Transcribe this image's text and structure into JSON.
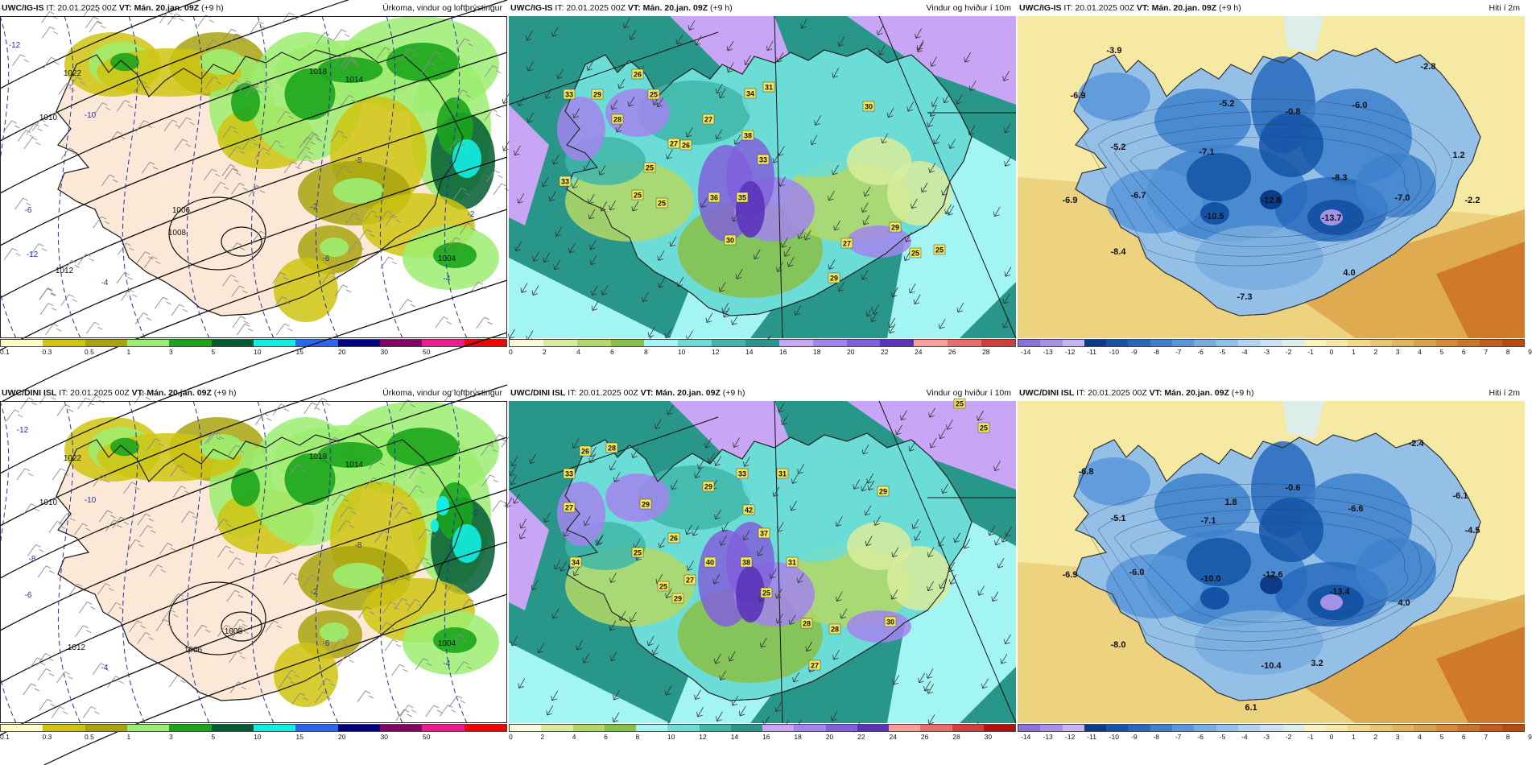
{
  "panels": [
    {
      "id": "p1",
      "model": "UWC/IG-IS",
      "it": "IT: 20.01.2025 00Z",
      "vt_label": "VT:",
      "vt": "Mán. 20.jan. 09Z",
      "lead": "(+9 h)",
      "title": "Úrkoma, vindur og loftþrýstingur",
      "type": "precip",
      "legend_ticks": [
        "0.1",
        "0.3",
        "0.5",
        "1",
        "3",
        "5",
        "10",
        "15",
        "20",
        "30",
        "50"
      ],
      "labels": [
        {
          "t": "1022"
        },
        {
          "t": "1018"
        },
        {
          "t": "1014"
        },
        {
          "t": "1010"
        },
        {
          "t": "1006"
        },
        {
          "t": "1012"
        },
        {
          "t": "1008"
        },
        {
          "t": "1004"
        },
        {
          "t": "-12"
        },
        {
          "t": "-10"
        },
        {
          "t": "-8"
        },
        {
          "t": "-6"
        },
        {
          "t": "-4"
        },
        {
          "t": "-2"
        },
        {
          "t": "-12"
        },
        {
          "t": "-6"
        },
        {
          "t": "-4"
        },
        {
          "t": "-2"
        }
      ]
    },
    {
      "id": "p2",
      "model": "UWC/IG-IS",
      "it": "IT: 20.01.2025 00Z",
      "vt_label": "VT:",
      "vt": "Mán. 20.jan. 09Z",
      "lead": "(+9 h)",
      "title": "Vindur og hviður í 10m",
      "type": "wind",
      "legend_ticks": [
        "0",
        "2",
        "4",
        "6",
        "8",
        "10",
        "12",
        "14",
        "16",
        "18",
        "20",
        "22",
        "24",
        "26",
        "28"
      ],
      "labels": [
        {
          "t": "33"
        },
        {
          "t": "29"
        },
        {
          "t": "26"
        },
        {
          "t": "25"
        },
        {
          "t": "28"
        },
        {
          "t": "27"
        },
        {
          "t": "25"
        },
        {
          "t": "33"
        },
        {
          "t": "25"
        },
        {
          "t": "25"
        },
        {
          "t": "36"
        },
        {
          "t": "35"
        },
        {
          "t": "30"
        },
        {
          "t": "34"
        },
        {
          "t": "27"
        },
        {
          "t": "31"
        },
        {
          "t": "38"
        },
        {
          "t": "33"
        },
        {
          "t": "26"
        },
        {
          "t": "30"
        },
        {
          "t": "29"
        },
        {
          "t": "27"
        },
        {
          "t": "29"
        },
        {
          "t": "25"
        },
        {
          "t": "25"
        }
      ]
    },
    {
      "id": "p3",
      "model": "UWC/IG-IS",
      "it": "IT: 20.01.2025 00Z",
      "vt_label": "VT:",
      "vt": "Mán. 20.jan. 09Z",
      "lead": "(+9 h)",
      "title": "Hiti í 2m",
      "type": "temp",
      "legend_ticks": [
        "-14",
        "-13",
        "-12",
        "-11",
        "-10",
        "-9",
        "-8",
        "-7",
        "-6",
        "-5",
        "-4",
        "-3",
        "-2",
        "-1",
        "0",
        "1",
        "2",
        "3",
        "4",
        "5",
        "6",
        "7",
        "8",
        "9"
      ],
      "labels": [
        {
          "t": "-3.9"
        },
        {
          "t": "-2.8"
        },
        {
          "t": "-6.9"
        },
        {
          "t": "-5.2"
        },
        {
          "t": "-0.8"
        },
        {
          "t": "-6.0"
        },
        {
          "t": "-5.2"
        },
        {
          "t": "-7.1"
        },
        {
          "t": "1.2"
        },
        {
          "t": "-8.3"
        },
        {
          "t": "-6.9"
        },
        {
          "t": "-6.7"
        },
        {
          "t": "-10.5"
        },
        {
          "t": "-12.8"
        },
        {
          "t": "-7.0"
        },
        {
          "t": "-2.2"
        },
        {
          "t": "-13.7"
        },
        {
          "t": "-8.4"
        },
        {
          "t": "4.0"
        },
        {
          "t": "-7.3"
        }
      ]
    },
    {
      "id": "p4",
      "model": "UWC/DINI ISL",
      "it": "IT: 20.01.2025 00Z",
      "vt_label": "VT:",
      "vt": "Mán. 20.jan. 09Z",
      "lead": "(+9 h)",
      "title": "Úrkoma, vindur og loftþrýstingur",
      "type": "precip",
      "legend_ticks": [
        "0.1",
        "0.3",
        "0.5",
        "1",
        "3",
        "5",
        "10",
        "15",
        "20",
        "30",
        "50"
      ],
      "labels": [
        {
          "t": "1022"
        },
        {
          "t": "1018"
        },
        {
          "t": "1014"
        },
        {
          "t": "1010"
        },
        {
          "t": "1012"
        },
        {
          "t": "1008"
        },
        {
          "t": "1006"
        },
        {
          "t": "1004"
        },
        {
          "t": "-12"
        },
        {
          "t": "-10"
        },
        {
          "t": "-8"
        },
        {
          "t": "-6"
        },
        {
          "t": "-4"
        },
        {
          "t": "-2"
        },
        {
          "t": "-8"
        },
        {
          "t": "-6"
        },
        {
          "t": "-4"
        },
        {
          "t": "-2"
        }
      ]
    },
    {
      "id": "p5",
      "model": "UWC/DINI ISL",
      "it": "IT: 20.01.2025 00Z",
      "vt_label": "VT:",
      "vt": "Mán. 20.jan. 09Z",
      "lead": "(+9 h)",
      "title": "Vindur og hviður í 10m",
      "type": "wind",
      "legend_ticks": [
        "0",
        "2",
        "4",
        "6",
        "8",
        "10",
        "12",
        "14",
        "16",
        "18",
        "20",
        "22",
        "24",
        "26",
        "28",
        "30"
      ],
      "labels": [
        {
          "t": "26"
        },
        {
          "t": "28"
        },
        {
          "t": "33"
        },
        {
          "t": "27"
        },
        {
          "t": "29"
        },
        {
          "t": "34"
        },
        {
          "t": "25"
        },
        {
          "t": "26"
        },
        {
          "t": "25"
        },
        {
          "t": "40"
        },
        {
          "t": "29"
        },
        {
          "t": "33"
        },
        {
          "t": "31"
        },
        {
          "t": "42"
        },
        {
          "t": "37"
        },
        {
          "t": "27"
        },
        {
          "t": "38"
        },
        {
          "t": "31"
        },
        {
          "t": "25"
        },
        {
          "t": "29"
        },
        {
          "t": "28"
        },
        {
          "t": "28"
        },
        {
          "t": "27"
        },
        {
          "t": "30"
        },
        {
          "t": "29"
        },
        {
          "t": "25"
        },
        {
          "t": "25"
        }
      ]
    },
    {
      "id": "p6",
      "model": "UWC/DINI ISL",
      "it": "IT: 20.01.2025 00Z",
      "vt_label": "VT:",
      "vt": "Mán. 20.jan. 09Z",
      "lead": "(+9 h)",
      "title": "Hiti í 2m",
      "type": "temp",
      "legend_ticks": [
        "-14",
        "-13",
        "-12",
        "-11",
        "-10",
        "-9",
        "-8",
        "-7",
        "-6",
        "-5",
        "-4",
        "-3",
        "-2",
        "-1",
        "0",
        "1",
        "2",
        "3",
        "4",
        "5",
        "6",
        "7",
        "8",
        "9"
      ],
      "labels": [
        {
          "t": "-2.4"
        },
        {
          "t": "-6.8"
        },
        {
          "t": "-0.6"
        },
        {
          "t": "1.8"
        },
        {
          "t": "-6.1"
        },
        {
          "t": "-5.1"
        },
        {
          "t": "-7.1"
        },
        {
          "t": "-6.6"
        },
        {
          "t": "-4.5"
        },
        {
          "t": "-6.9"
        },
        {
          "t": "-6.0"
        },
        {
          "t": "-10.0"
        },
        {
          "t": "-12.6"
        },
        {
          "t": "-13.4"
        },
        {
          "t": "4.0"
        },
        {
          "t": "-8.0"
        },
        {
          "t": "3.2"
        },
        {
          "t": "-10.4"
        },
        {
          "t": "6.1"
        }
      ]
    }
  ],
  "colors": {
    "precip": [
      "#fdfbc8",
      "#cfc411",
      "#a8a40f",
      "#9ced71",
      "#1ba51d",
      "#005c33",
      "#12eee4",
      "#2a67f0",
      "#00007c",
      "#830065",
      "#ef1a8b",
      "#f20303"
    ],
    "wind": [
      "#f7f9de",
      "#d8ec9c",
      "#b4d865",
      "#88c045",
      "#a3f5f3",
      "#6cdcd6",
      "#3fb6a9",
      "#29968a",
      "#c8a6f5",
      "#a384ef",
      "#8060dc",
      "#5a34b9",
      "#fa9d9d",
      "#e66e6e",
      "#d13e3e",
      "#b31010"
    ],
    "temp": [
      "#8b70d8",
      "#a492e4",
      "#c4b6f1",
      "#0c3c88",
      "#1453a6",
      "#2668bc",
      "#3d80cc",
      "#5897d9",
      "#77addf",
      "#94c0e8",
      "#b3d2ef",
      "#cde1f2",
      "#dbeeea",
      "#f8f4c0",
      "#f5e9a4",
      "#f1d988",
      "#eac76f",
      "#e3b45a",
      "#dca046",
      "#d68b33",
      "#cd7425",
      "#c45e18",
      "#b84b0c"
    ],
    "land_precip": "#fbe8d6",
    "sea_precip": "#ffffff"
  }
}
